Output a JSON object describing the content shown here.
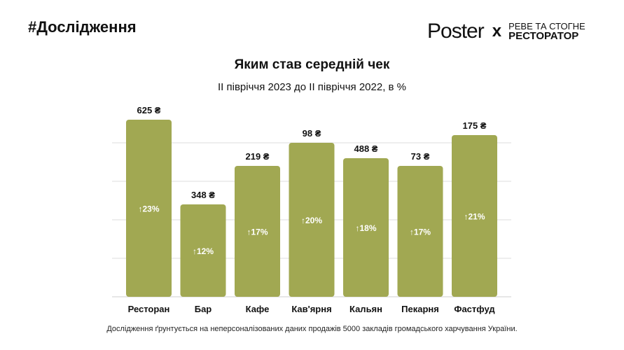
{
  "header": {
    "tag": "#Дослідження",
    "logo_poster": "Poster",
    "logo_x": "x",
    "logo_line1": "РЕВЕ ТА СТОГНЕ",
    "logo_line2": "РЕСТОРАТОР"
  },
  "footer": "Дослідження ґрунтується на неперсоналізованих даних продажів 5000 закладів громадського харчування України.",
  "colors": {
    "bar": "#a1a852",
    "grid": "#dcdcdc"
  },
  "chart_data": {
    "type": "bar",
    "title": "Яким став середній чек",
    "subtitle": "ІІ півріччя 2023 до ІІ півріччя 2022, в %",
    "categories": [
      "Ресторан",
      "Бар",
      "Кафе",
      "Кав'ярня",
      "Кальян",
      "Пекарня",
      "Фастфуд"
    ],
    "values": [
      23,
      12,
      17,
      20,
      18,
      17,
      21
    ],
    "value_labels": [
      "↑23%",
      "↑12%",
      "↑17%",
      "↑20%",
      "↑18%",
      "↑17%",
      "↑21%"
    ],
    "top_labels": [
      "625 ₴",
      "348 ₴",
      "219 ₴",
      "98 ₴",
      "488 ₴",
      "73 ₴",
      "175 ₴"
    ],
    "ylim": [
      0,
      25
    ],
    "grid": true,
    "grid_step": 5
  }
}
